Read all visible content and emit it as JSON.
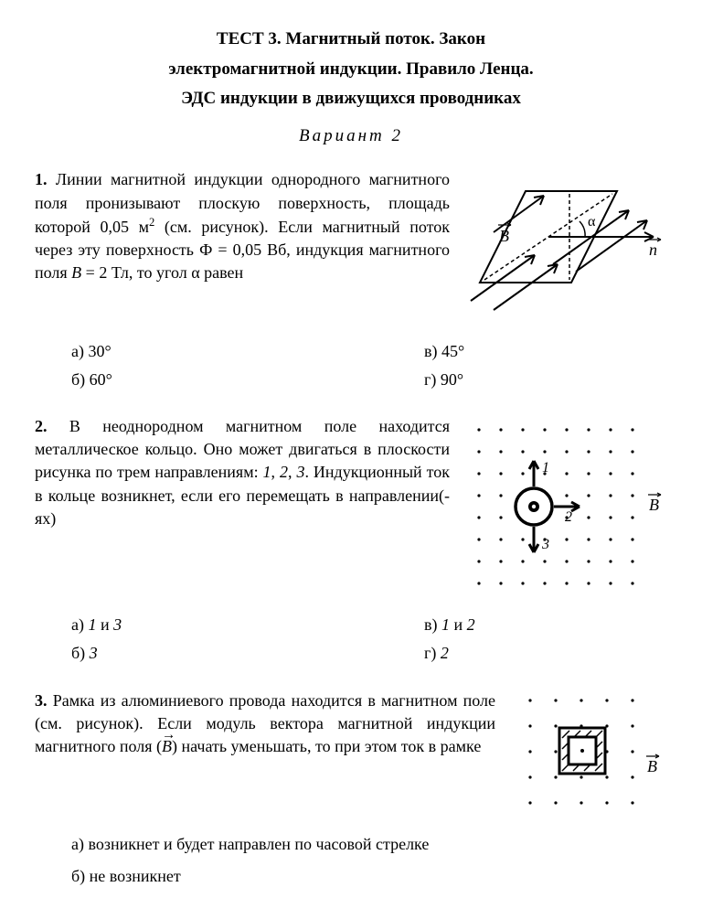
{
  "title_lines": [
    "ТЕСТ 3. Магнитный поток. Закон",
    "электромагнитной индукции. Правило Ленца.",
    "ЭДС индукции в движущихся проводниках"
  ],
  "variant": "Вариант 2",
  "q1": {
    "num": "1.",
    "text_html": "Линии магнитной индукции одно­родного магнитного поля прони­зывают плоскую поверхность, пло­щадь которой 0,05 м<sup>2</sup> (см. рисунок). Если магнитный поток через эту поверхность Ф = 0,05 Вб, индукция магнитного поля <i>B</i> = 2 Тл, то угол α равен",
    "opts": {
      "a": "а)  30°",
      "b": "б)  60°",
      "v": "в)  45°",
      "g": "г)  90°"
    },
    "fig": {
      "B_label": "B",
      "n_label": "n",
      "alpha": "α"
    }
  },
  "q2": {
    "num": "2.",
    "text_html": "В неоднородном магнитном поле на­ходится металлическое кольцо. Оно может двигаться в плоскости рисун­ка по трем направлениям: <i>1</i>, <i>2</i>, <i>3</i>. Индукционный ток в кольце возник­нет, если его перемещать в направле­нии(-ях)",
    "opts": {
      "a": "а)  <i>1</i> и <i>3</i>",
      "b": "б)  <i>3</i>",
      "v": "в)  <i>1</i> и <i>2</i>",
      "g": "г)  <i>2</i>"
    },
    "fig": {
      "B_label": "B",
      "d1": "1",
      "d2": "2",
      "d3": "3"
    }
  },
  "q3": {
    "num": "3.",
    "text_html": "Рамка из алюминиевого провода на­ходится в магнитном поле (см. рису­нок). Если модуль вектора магнитной индукции магнитного поля (<span class=\"vec\"><i>B</i></span>) начать уменьшать, то при этом ток в рамке",
    "opts": {
      "a": "а)  возникнет и будет направлен по часовой стрелке",
      "b": "б)  не возникнет"
    },
    "fig": {
      "B_label": "B"
    }
  },
  "style": {
    "stroke": "#000000",
    "dash": "4 3",
    "dot_r": 1.6
  }
}
